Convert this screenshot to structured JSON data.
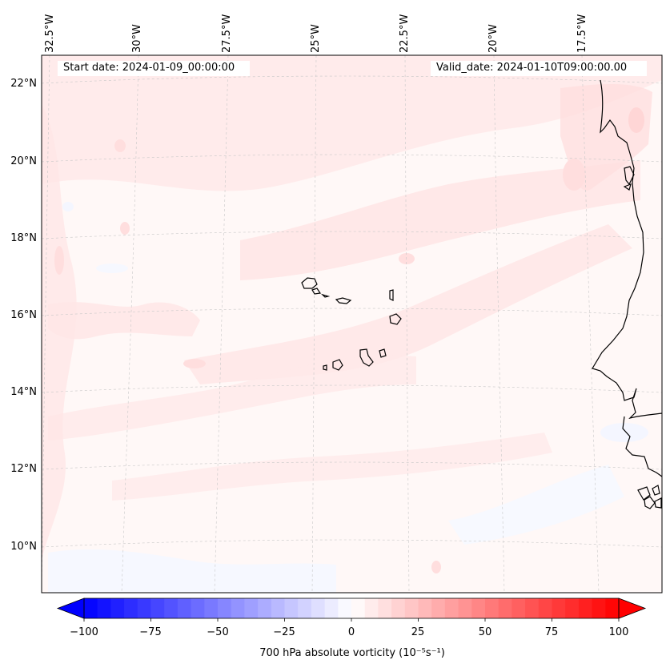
{
  "map": {
    "start_date": "Start date: 2024-01-09_00:00:00",
    "valid_date": "Valid_date: 2024-01-10T09:00:00.00",
    "lon_labels": [
      "32.5°W",
      "30°W",
      "27.5°W",
      "25°W",
      "22.5°W",
      "20°W",
      "17.5°W"
    ],
    "lat_labels": [
      "22°N",
      "20°N",
      "18°N",
      "16°N",
      "14°N",
      "12°N",
      "10°N"
    ],
    "field_colors": {
      "background": "#fff7f6",
      "positive": "#ffe6e6",
      "stronger_positive": "#ffdcdc",
      "negative": "#f6f8ff"
    },
    "coastline_color": "#000000"
  },
  "colorbar": {
    "label": "700 hPa absolute vorticity (10⁻⁵s⁻¹)",
    "ticks": [
      "−100",
      "−75",
      "−50",
      "−25",
      "0",
      "25",
      "50",
      "75",
      "100"
    ],
    "tick_values": [
      -100,
      -75,
      -50,
      -25,
      0,
      25,
      50,
      75,
      100
    ],
    "range": [
      -100,
      100
    ],
    "step": 5,
    "colors": {
      "min": "#0000ff",
      "mid": "#ffffff",
      "max": "#ff0000"
    },
    "extend": "both"
  }
}
